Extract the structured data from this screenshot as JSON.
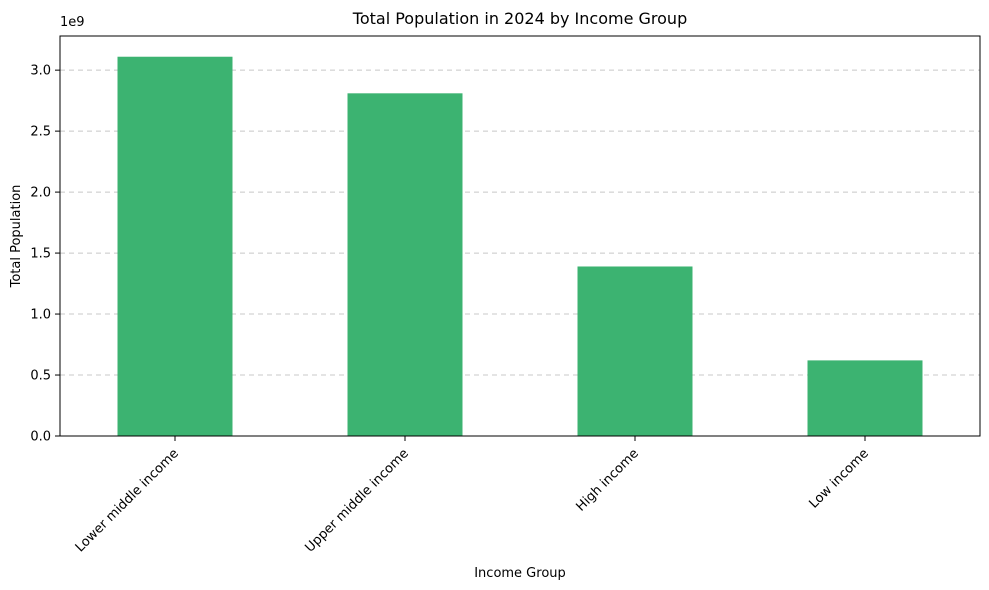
{
  "chart_data": {
    "type": "bar",
    "title": "Total Population in 2024 by Income Group",
    "xlabel": "Income Group",
    "ylabel": "Total Population",
    "categories": [
      "Lower middle income",
      "Upper middle income",
      "High income",
      "Low income"
    ],
    "values": [
      3110000000,
      2810000000,
      1390000000,
      620000000
    ],
    "ylim": [
      0,
      3280000000
    ],
    "y_ticks": [
      0,
      500000000,
      1000000000,
      1500000000,
      2000000000,
      2500000000,
      3000000000
    ],
    "y_tick_labels": [
      "0.0",
      "0.5",
      "1.0",
      "1.5",
      "2.0",
      "2.5",
      "3.0"
    ],
    "y_offset_label": "1e9",
    "grid": "y-dashed",
    "bar_color": "#3cb371"
  }
}
